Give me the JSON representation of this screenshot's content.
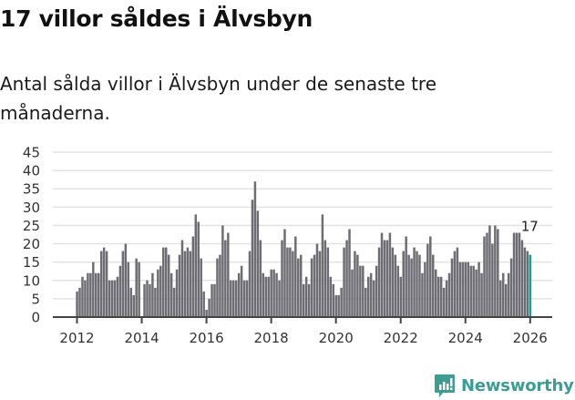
{
  "header": {
    "title": "17 villor såldes i Älvsbyn",
    "subtitle": "Antal sålda villor i Älvsbyn under de senaste tre månaderna."
  },
  "colors": {
    "bar": "#6e6d73",
    "highlight": "#1a9e94",
    "grid": "#e3e3e3",
    "axis": "#444444",
    "brand": "#3a9e93"
  },
  "branding": {
    "name": "Newsworthy"
  },
  "chart_data": {
    "type": "bar",
    "title": "17 villor såldes i Älvsbyn",
    "subtitle": "Antal sålda villor i Älvsbyn under de senaste tre månaderna.",
    "xlabel": "",
    "ylabel": "",
    "ylim": [
      0,
      45
    ],
    "yticks": [
      0,
      5,
      10,
      15,
      20,
      25,
      30,
      35,
      40,
      45
    ],
    "xticks": [
      "2012",
      "2014",
      "2016",
      "2018",
      "2020",
      "2022",
      "2024",
      "2026"
    ],
    "grid": true,
    "legend": null,
    "start": "2012-01",
    "frequency": "monthly",
    "annotation": {
      "label": "17",
      "at": "2026-01"
    },
    "highlight_last": true,
    "values": [
      7,
      8,
      11,
      10,
      12,
      12,
      15,
      12,
      12,
      18,
      19,
      18,
      10,
      10,
      10,
      11,
      14,
      18,
      20,
      15,
      8,
      6,
      16,
      15,
      0,
      9,
      10,
      9,
      12,
      8,
      13,
      14,
      19,
      19,
      17,
      12,
      8,
      13,
      17,
      21,
      18,
      19,
      18,
      22,
      28,
      26,
      16,
      7,
      2,
      5,
      9,
      9,
      16,
      17,
      25,
      21,
      23,
      10,
      10,
      10,
      12,
      14,
      10,
      10,
      18,
      32,
      37,
      29,
      21,
      12,
      11,
      11,
      13,
      13,
      12,
      10,
      21,
      24,
      19,
      19,
      18,
      22,
      16,
      17,
      9,
      11,
      9,
      16,
      17,
      20,
      18,
      28,
      21,
      19,
      11,
      9,
      6,
      6,
      8,
      19,
      21,
      24,
      13,
      18,
      17,
      14,
      14,
      8,
      11,
      12,
      10,
      14,
      19,
      23,
      21,
      21,
      23,
      19,
      17,
      14,
      11,
      18,
      22,
      17,
      16,
      19,
      18,
      17,
      12,
      15,
      20,
      22,
      17,
      13,
      11,
      11,
      8,
      10,
      12,
      16,
      18,
      19,
      15,
      15,
      15,
      15,
      14,
      14,
      13,
      15,
      12,
      22,
      23,
      25,
      20,
      25,
      24,
      10,
      12,
      9,
      12,
      16,
      23,
      23,
      23,
      21,
      19,
      18,
      17
    ]
  }
}
